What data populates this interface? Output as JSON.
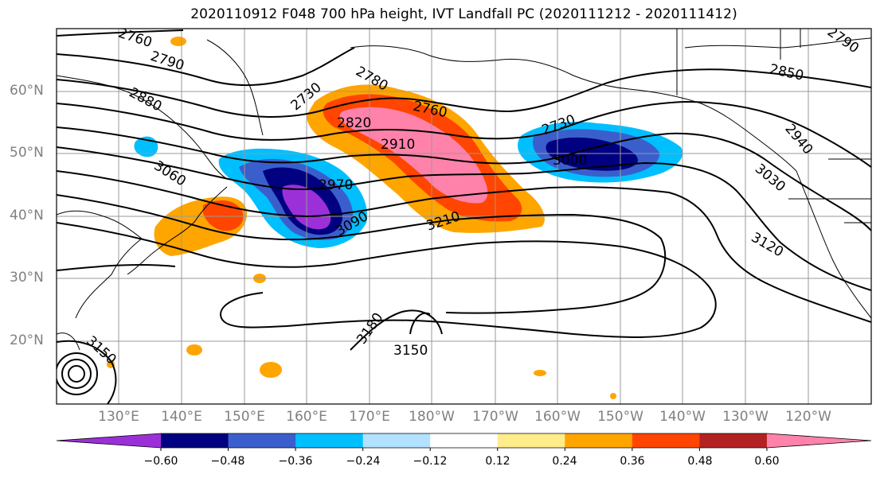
{
  "title": "2020110912 F048 700 hPa height, IVT Landfall PC (2020111212 - 2020111412)",
  "map": {
    "lat_labels": [
      "60°N",
      "50°N",
      "40°N",
      "30°N",
      "20°N"
    ],
    "lon_labels": [
      "130°E",
      "140°E",
      "150°E",
      "160°E",
      "170°E",
      "180°W",
      "170°W",
      "160°W",
      "150°W",
      "140°W",
      "130°W",
      "120°W"
    ],
    "contour_labels": [
      "2760",
      "2790",
      "2880",
      "3060",
      "2730",
      "2780",
      "2820",
      "2910",
      "2760",
      "2970",
      "3090",
      "3210",
      "2730",
      "3000",
      "2850",
      "2790",
      "2940",
      "3030",
      "3120",
      "3180",
      "3150",
      "3150"
    ],
    "colors": {
      "land_outline": "#000000",
      "grid": "#999999"
    }
  },
  "colorbar": {
    "tick_labels": [
      "−0.60",
      "−0.48",
      "−0.36",
      "−0.24",
      "−0.12",
      "0.12",
      "0.24",
      "0.36",
      "0.48",
      "0.60"
    ],
    "colors": [
      "#9b30d9",
      "#000080",
      "#3a5fcd",
      "#00bfff",
      "#b2e2ff",
      "#ffffff",
      "#ffec8b",
      "#ffa500",
      "#ff4500",
      "#b22222",
      "#ff82ab"
    ]
  }
}
